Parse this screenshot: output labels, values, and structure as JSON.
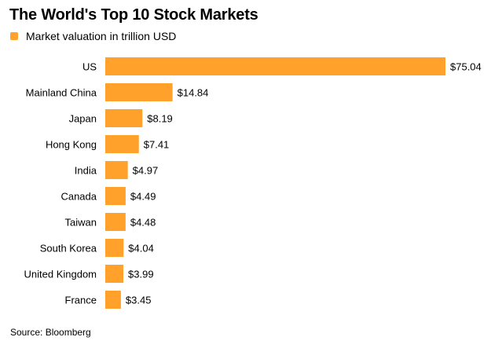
{
  "title": "The World's Top 10 Stock Markets",
  "legend": {
    "label": "Market valuation in trillion USD",
    "color": "#FFA12B"
  },
  "source": "Source: Bloomberg",
  "chart_data": {
    "type": "bar",
    "orientation": "horizontal",
    "title": "The World's Top 10 Stock Markets",
    "xlabel": "",
    "ylabel": "",
    "categories": [
      "US",
      "Mainland China",
      "Japan",
      "Hong Kong",
      "India",
      "Canada",
      "Taiwan",
      "South Korea",
      "United Kingdom",
      "France"
    ],
    "values": [
      75.04,
      14.84,
      8.19,
      7.41,
      4.97,
      4.49,
      4.48,
      4.04,
      3.99,
      3.45
    ],
    "labels": [
      "$75.04",
      "$14.84",
      "$8.19",
      "$7.41",
      "$4.97",
      "$4.49",
      "$4.48",
      "$4.04",
      "$3.99",
      "$3.45"
    ],
    "series": [
      {
        "name": "Market valuation in trillion USD",
        "values": [
          75.04,
          14.84,
          8.19,
          7.41,
          4.97,
          4.49,
          4.48,
          4.04,
          3.99,
          3.45
        ]
      }
    ],
    "xlim": [
      0,
      75.04
    ],
    "grid": false,
    "legend_position": "top-left",
    "bar_color": "#FFA12B"
  }
}
